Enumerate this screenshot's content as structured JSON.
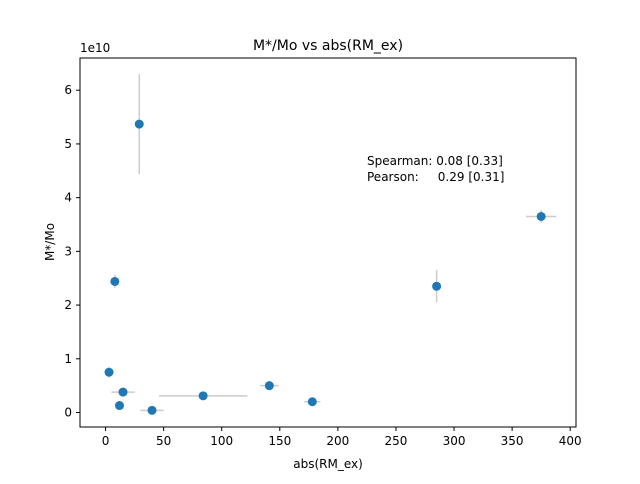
{
  "chart_data": {
    "type": "scatter",
    "title": "M*/Mo vs abs(RM_ex)",
    "xlabel": "abs(RM_ex)",
    "ylabel": "M*/Mo",
    "y_offset_label": "1e10",
    "xlim": [
      -22,
      405
    ],
    "ylim": [
      -0.27,
      6.6
    ],
    "xticks": [
      0,
      50,
      100,
      150,
      200,
      250,
      300,
      350,
      400
    ],
    "yticks": [
      0,
      1,
      2,
      3,
      4,
      5,
      6
    ],
    "grid": false,
    "marker_color": "#1f77b4",
    "errorbar_color": "#cccccc",
    "points": [
      {
        "x": 29,
        "y": 5.37,
        "xerr": 0,
        "yerr": 0.93
      },
      {
        "x": 8,
        "y": 2.44,
        "xerr": 0,
        "yerr": 0.12
      },
      {
        "x": 3,
        "y": 0.75,
        "xerr": 0,
        "yerr": 0.1
      },
      {
        "x": 15,
        "y": 0.38,
        "xerr": 10,
        "yerr": 0.05
      },
      {
        "x": 12,
        "y": 0.13,
        "xerr": 0,
        "yerr": 0
      },
      {
        "x": 40,
        "y": 0.04,
        "xerr": 10,
        "yerr": 0
      },
      {
        "x": 84,
        "y": 0.31,
        "xerr": 38,
        "yerr": 0
      },
      {
        "x": 141,
        "y": 0.5,
        "xerr": 8,
        "yerr": 0.05
      },
      {
        "x": 178,
        "y": 0.2,
        "xerr": 7,
        "yerr": 0
      },
      {
        "x": 285,
        "y": 2.35,
        "xerr": 0,
        "yerr": 0.3
      },
      {
        "x": 375,
        "y": 3.65,
        "xerr": 13,
        "yerr": 0.12
      }
    ],
    "annotations": [
      "Spearman: 0.08 [0.33]",
      "Pearson:     0.29 [0.31]"
    ]
  }
}
